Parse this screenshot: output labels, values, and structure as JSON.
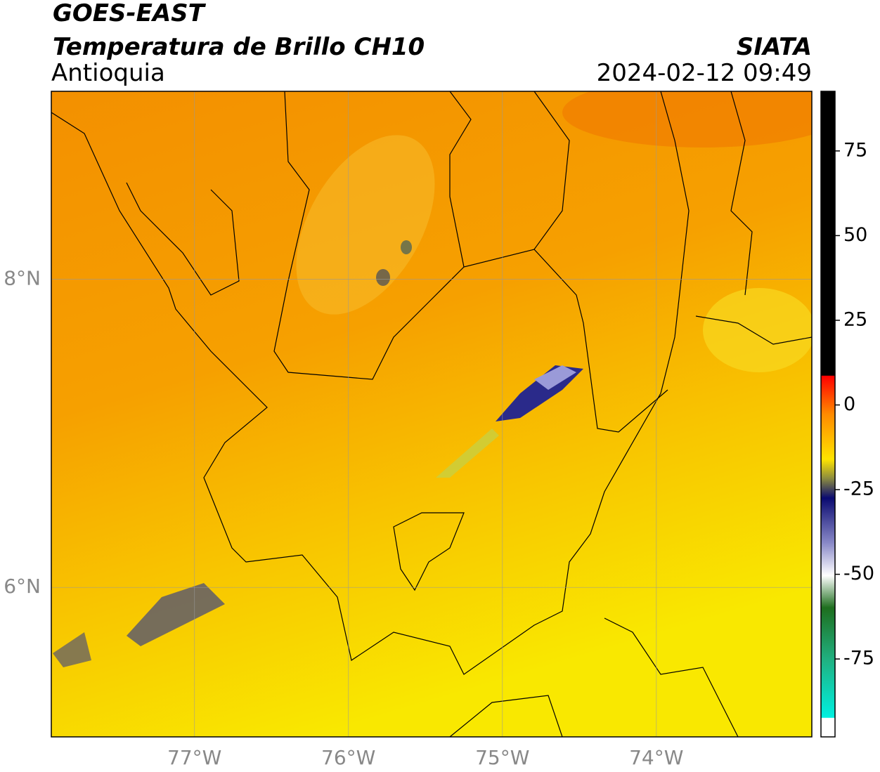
{
  "header": {
    "title": "GOES-EAST",
    "subtitle": "Temperatura de Brillo CH10",
    "region": "Antioquia",
    "source": "SIATA",
    "datetime": "2024-02-12 09:49"
  },
  "map": {
    "lonlim": [
      -77.93,
      -72.99
    ],
    "latlim": [
      5.03,
      9.22
    ],
    "lon_ticks": [
      {
        "value": -77,
        "label": "77°W"
      },
      {
        "value": -76,
        "label": "76°W"
      },
      {
        "value": -75,
        "label": "75°W"
      },
      {
        "value": -74,
        "label": "74°W"
      }
    ],
    "lat_ticks": [
      {
        "value": 8,
        "label": "8°N"
      },
      {
        "value": 6,
        "label": "6°N"
      }
    ],
    "grid": true
  },
  "colorbar": {
    "lim": [
      -98,
      92.6
    ],
    "ticks": [
      75,
      50,
      25,
      0,
      -25,
      -50,
      -75
    ]
  }
}
